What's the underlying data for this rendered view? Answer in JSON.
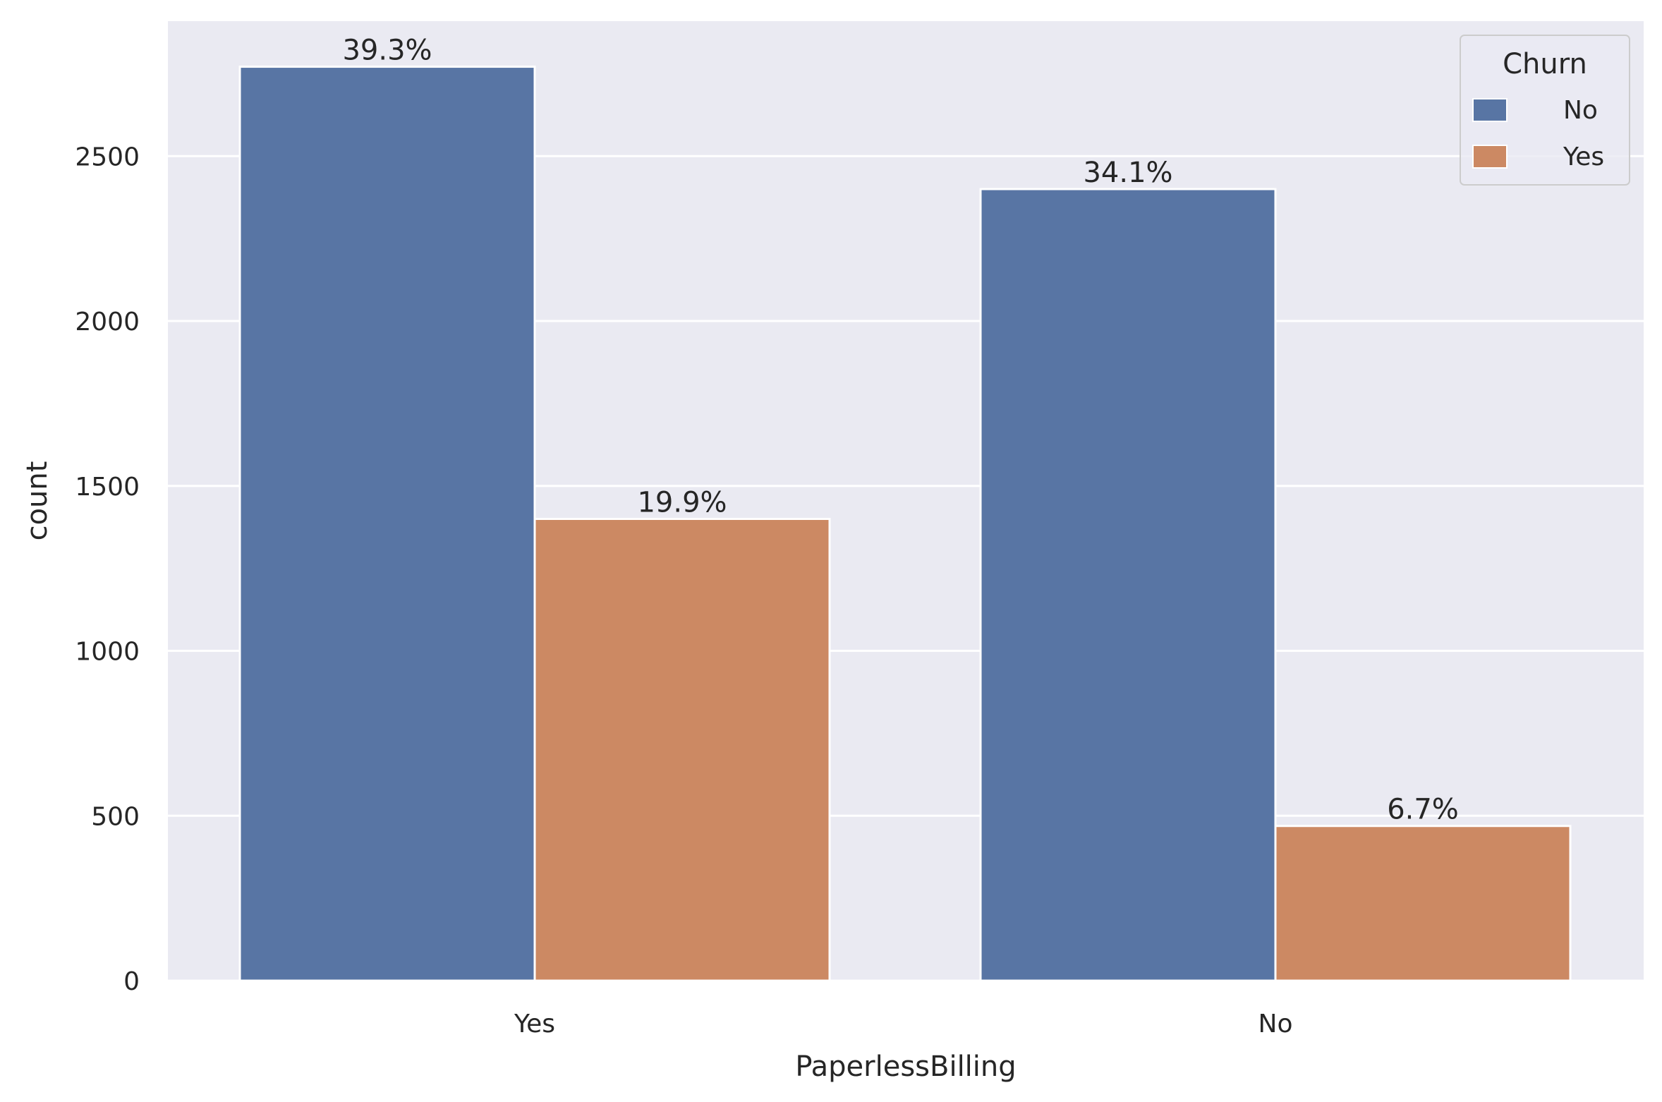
{
  "chart_data": {
    "type": "bar",
    "title": "",
    "xlabel": "PaperlessBilling",
    "ylabel": "count",
    "categories": [
      "Yes",
      "No"
    ],
    "series": [
      {
        "name": "No",
        "color": "#5875a4",
        "values": [
          2771,
          2400
        ],
        "labels": [
          "39.3%",
          "34.1%"
        ]
      },
      {
        "name": "Yes",
        "color": "#cc8963",
        "values": [
          1400,
          469
        ],
        "labels": [
          "19.9%",
          "6.7%"
        ]
      }
    ],
    "ylim": [
      0,
      2900
    ],
    "yticks": [
      0,
      500,
      1000,
      1500,
      2000,
      2500
    ],
    "grid": true,
    "background": "#eaeaf2",
    "legend": {
      "title": "Churn",
      "placement": "top-right"
    }
  }
}
